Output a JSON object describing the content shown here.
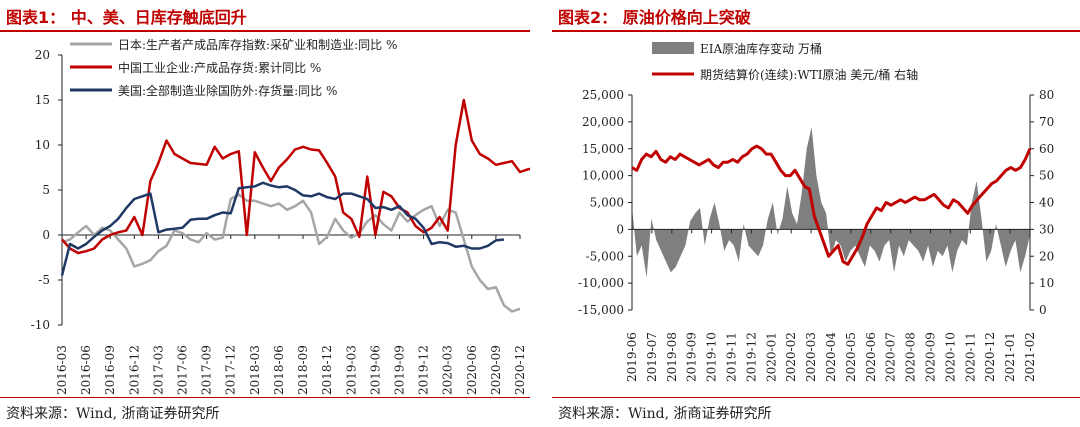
{
  "chart_data": [
    {
      "type": "line",
      "title": "图表1： 中、美、日库存触底回升",
      "source": "资料来源：Wind, 浙商证券研究所",
      "ylim": [
        -10,
        20
      ],
      "yticks": [
        "20",
        "15",
        "10",
        "5",
        "0",
        "-5",
        "-10"
      ],
      "ytick_values": [
        20,
        15,
        10,
        5,
        0,
        -5,
        -10
      ],
      "xtick_labels": [
        "2016-03",
        "2016-06",
        "2016-09",
        "2016-12",
        "2017-03",
        "2017-06",
        "2017-09",
        "2017-12",
        "2018-03",
        "2018-06",
        "2018-09",
        "2018-12",
        "2019-03",
        "2019-06",
        "2019-09",
        "2019-12",
        "2020-03",
        "2020-06",
        "2020-09",
        "2020-12"
      ],
      "n_months": 58,
      "legend": [
        "日本:生产者产成品库存指数:采矿业和制造业:同比 %",
        "中国工业企业:产成品存货:累计同比 %",
        "美国:全部制造业除国防外:存货量:同比 %"
      ],
      "series": [
        {
          "name": "日本:生产者产成品库存指数:采矿业和制造业:同比 %",
          "color": "#a6a6a6",
          "values": [
            -0.8,
            -0.5,
            0.3,
            1,
            0,
            0.8,
            0.5,
            -0.5,
            -1.5,
            -3.5,
            -3.2,
            -2.8,
            -1.8,
            -1.2,
            0.5,
            0.2,
            -0.5,
            -0.8,
            0.2,
            -0.5,
            -0.3,
            4,
            4.5,
            3.8,
            3.8,
            3.5,
            3.2,
            3.5,
            2.8,
            3.2,
            3.8,
            2.5,
            -1,
            -0.2,
            1.8,
            0.5,
            -0.3,
            0.2,
            1.5,
            2.2,
            1.2,
            0.5,
            2.5,
            1.5,
            2.2,
            2.8,
            3.2,
            1,
            2.8,
            2.5,
            -0.5,
            -3.5,
            -5,
            -6,
            -5.8,
            -7.8,
            -8.5,
            -8.2
          ]
        },
        {
          "name": "中国工业企业:产成品存货:累计同比 %",
          "color": "#c00000",
          "values": [
            -0.5,
            -1.5,
            -2,
            -1.8,
            -1.5,
            -0.5,
            0,
            0.3,
            0.5,
            2,
            0,
            6,
            8,
            10.5,
            9,
            8.5,
            8,
            7.9,
            7.8,
            9.8,
            8.5,
            9,
            9.3,
            0,
            9.2,
            7.5,
            6,
            7.5,
            8.4,
            9.5,
            9.8,
            9.5,
            9.4,
            8,
            6.5,
            2.5,
            1.8,
            -0.2,
            6.5,
            0,
            4.8,
            4.3,
            3,
            2.5,
            1,
            0.3,
            0.8,
            2,
            0.5,
            10,
            15,
            10.5,
            9,
            8.5,
            7.8,
            8,
            8.2,
            7,
            7.3,
            7.5
          ]
        },
        {
          "name": "美国:全部制造业除国防外:存货量:同比 %",
          "color": "#1f3864",
          "values": [
            -4.5,
            -1,
            -1.5,
            -1,
            -0.2,
            0.5,
            1,
            1.8,
            3,
            4,
            4.3,
            4.6,
            0.3,
            0.6,
            0.7,
            0.8,
            1.7,
            1.8,
            1.8,
            2.2,
            2.5,
            2.4,
            5.2,
            5.3,
            5.4,
            5.8,
            5.5,
            5.3,
            5.4,
            5,
            4.4,
            4.3,
            4.6,
            4.2,
            4,
            4.6,
            4.6,
            4.3,
            4,
            3,
            3.1,
            2.8,
            3.2,
            2.2,
            1.8,
            0.8,
            -1,
            -0.8,
            -0.9,
            -1.3,
            -1.2,
            -1.5,
            -1.5,
            -1.2,
            -0.6,
            -0.5
          ]
        }
      ]
    },
    {
      "type": "bar+line",
      "title": "图表2： 原油价格向上突破",
      "source": "资料来源：Wind, 浙商证券研究所",
      "ylim_left": [
        -15000,
        25000
      ],
      "ylim_right": [
        0,
        80
      ],
      "yticks_left": [
        "25,000",
        "20,000",
        "15,000",
        "10,000",
        "5,000",
        "0",
        "-5,000",
        "-10,000",
        "-15,000"
      ],
      "ytick_left_values": [
        25000,
        20000,
        15000,
        10000,
        5000,
        0,
        -5000,
        -10000,
        -15000
      ],
      "yticks_right": [
        "80",
        "70",
        "60",
        "50",
        "40",
        "30",
        "20",
        "10",
        "0"
      ],
      "ytick_right_values": [
        80,
        70,
        60,
        50,
        40,
        30,
        20,
        10,
        0
      ],
      "xtick_labels": [
        "2019-06",
        "2019-07",
        "2019-08",
        "2019-09",
        "2019-10",
        "2019-11",
        "2019-12",
        "2020-01",
        "2020-02",
        "2020-03",
        "2020-04",
        "2020-05",
        "2020-06",
        "2020-07",
        "2020-08",
        "2020-09",
        "2020-10",
        "2020-11",
        "2020-12",
        "2021-01",
        "2021-02"
      ],
      "legend": [
        "EIA原油库存变动 万桶",
        "期货结算价(连续):WTI原油 美元/桶 右轴"
      ],
      "series": [
        {
          "name": "EIA原油库存变动 万桶",
          "type": "area",
          "color": "#7f7f7f",
          "values": [
            4000,
            -5000,
            -3000,
            -9000,
            2000,
            -2000,
            -4000,
            -6000,
            -8000,
            -7000,
            -5000,
            -3000,
            1500,
            3000,
            4000,
            -3000,
            2000,
            5000,
            1000,
            -4000,
            -2000,
            -3000,
            -6000,
            1000,
            -3000,
            -4000,
            -5000,
            -3000,
            2000,
            5000,
            -1000,
            2000,
            8000,
            3000,
            1000,
            7000,
            15000,
            19000,
            10000,
            5000,
            3000,
            -5000,
            -2000,
            -3000,
            -6000,
            -4000,
            -3000,
            -5000,
            -7000,
            -3000,
            -4000,
            -6000,
            -3000,
            -2000,
            -8000,
            -3000,
            -5000,
            -2000,
            -3000,
            -4000,
            -6000,
            -3000,
            -7000,
            -4000,
            -5000,
            -3000,
            -8000,
            -4000,
            -2000,
            -3000,
            5000,
            9000,
            2000,
            -6000,
            -4000,
            1000,
            -3000,
            -7000,
            -4000,
            -2000,
            -8000,
            -5000,
            -1000
          ]
        },
        {
          "name": "期货结算价(连续):WTI原油 美元/桶 右轴",
          "type": "line",
          "color": "#c00000",
          "values": [
            53,
            52,
            56,
            58,
            57,
            59,
            56,
            55,
            57,
            56,
            58,
            57,
            56,
            55,
            54,
            55,
            56,
            54,
            53,
            55,
            55,
            56,
            55,
            57,
            58,
            60,
            61,
            60,
            58,
            58,
            55,
            52,
            50,
            50,
            52,
            49,
            46,
            45,
            35,
            30,
            25,
            20,
            22,
            24,
            18,
            17,
            20,
            23,
            27,
            32,
            35,
            38,
            37,
            40,
            39,
            40,
            41,
            40,
            41,
            42,
            41,
            41,
            42,
            43,
            41,
            39,
            38,
            41,
            40,
            38,
            36,
            39,
            41,
            43,
            45,
            47,
            48,
            50,
            52,
            53,
            52,
            53,
            56,
            60
          ]
        }
      ]
    }
  ]
}
